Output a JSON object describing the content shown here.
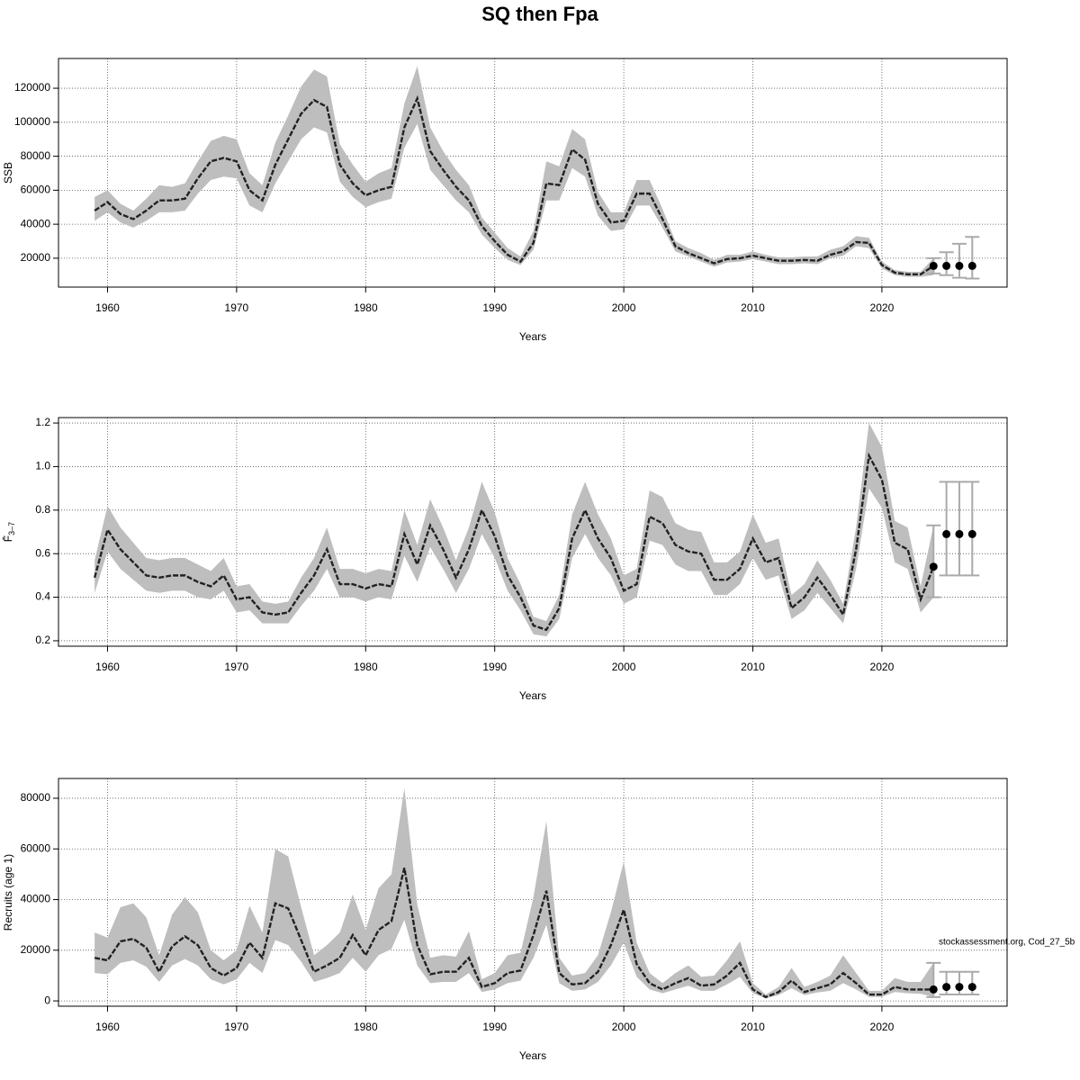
{
  "title": "SQ then Fpa",
  "chart_data": [
    {
      "type": "line",
      "xlabel": "Years",
      "ylabel": "SSB",
      "x": [
        1959,
        1960,
        1961,
        1962,
        1963,
        1964,
        1965,
        1966,
        1967,
        1968,
        1969,
        1970,
        1971,
        1972,
        1973,
        1974,
        1975,
        1976,
        1977,
        1978,
        1979,
        1980,
        1981,
        1982,
        1983,
        1984,
        1985,
        1986,
        1987,
        1988,
        1989,
        1990,
        1991,
        1992,
        1993,
        1994,
        1995,
        1996,
        1997,
        1998,
        1999,
        2000,
        2001,
        2002,
        2003,
        2004,
        2005,
        2006,
        2007,
        2008,
        2009,
        2010,
        2011,
        2012,
        2013,
        2014,
        2015,
        2016,
        2017,
        2018,
        2019,
        2020,
        2021,
        2022,
        2023,
        2024
      ],
      "values": [
        48000,
        53000,
        46000,
        43000,
        48000,
        54000,
        54000,
        55000,
        67000,
        77000,
        79000,
        77000,
        60000,
        54000,
        75000,
        90000,
        105000,
        113000,
        109000,
        75000,
        64000,
        57000,
        60000,
        62000,
        97000,
        114000,
        83000,
        72000,
        62000,
        54000,
        39000,
        30000,
        22000,
        18000,
        29000,
        64000,
        63000,
        84000,
        78000,
        52000,
        41000,
        42000,
        58000,
        58000,
        43000,
        27000,
        23000,
        20000,
        17000,
        19500,
        20000,
        21500,
        20000,
        18500,
        18500,
        19000,
        18500,
        22000,
        24000,
        29500,
        29000,
        16000,
        11500,
        10500,
        10500,
        15500
      ],
      "lower": [
        42000,
        47000,
        41000,
        38000,
        42000,
        47000,
        47000,
        48000,
        58000,
        66000,
        68000,
        67000,
        51000,
        47000,
        64000,
        77000,
        90000,
        97000,
        94000,
        65000,
        56000,
        50000,
        53000,
        55000,
        85000,
        99000,
        72000,
        63000,
        54000,
        47000,
        34000,
        26000,
        19000,
        16000,
        25000,
        54000,
        54000,
        73000,
        68000,
        45000,
        36000,
        37000,
        51000,
        51000,
        38000,
        24000,
        21000,
        18000,
        15000,
        17500,
        18000,
        19500,
        18000,
        16500,
        16500,
        17000,
        16500,
        20000,
        21500,
        27000,
        26000,
        14000,
        10000,
        9000,
        9000,
        10000
      ],
      "upper": [
        56000,
        60000,
        52000,
        48000,
        55000,
        63000,
        62000,
        64000,
        77000,
        89000,
        92000,
        90000,
        70000,
        63000,
        88000,
        104000,
        121000,
        131000,
        127000,
        87000,
        75000,
        65000,
        70000,
        73000,
        111000,
        133000,
        97000,
        83000,
        72000,
        63000,
        44000,
        35000,
        26000,
        21000,
        36000,
        77000,
        74000,
        96000,
        90000,
        59000,
        47000,
        47000,
        66000,
        66000,
        49000,
        30000,
        26000,
        23000,
        19000,
        22000,
        22000,
        24000,
        22000,
        20500,
        20500,
        21000,
        21000,
        25000,
        27000,
        33000,
        32000,
        18000,
        13000,
        12000,
        12000,
        20000
      ],
      "forecast": {
        "x": [
          2024,
          2025,
          2026,
          2027
        ],
        "values": [
          15500,
          15500,
          15500,
          15500
        ],
        "lower": [
          11000,
          10000,
          8500,
          8000
        ],
        "upper": [
          20000,
          23500,
          28500,
          32500
        ]
      },
      "xlim": [
        1956.2,
        2029.7
      ],
      "xticks": [
        1960,
        1970,
        1980,
        1990,
        2000,
        2010,
        2020
      ],
      "ylim": [
        3000,
        137500
      ],
      "yticks": [
        20000,
        40000,
        60000,
        80000,
        100000,
        120000
      ],
      "grid": true,
      "color": "#222222",
      "band_color": "#bebebe",
      "errorbar_color": "#aaaaaa",
      "point_color": "#000000"
    },
    {
      "type": "line",
      "xlabel": "Years",
      "ylabel": "F̄",
      "ylabel_subscript": "3–7",
      "x": [
        1959,
        1960,
        1961,
        1962,
        1963,
        1964,
        1965,
        1966,
        1967,
        1968,
        1969,
        1970,
        1971,
        1972,
        1973,
        1974,
        1975,
        1976,
        1977,
        1978,
        1979,
        1980,
        1981,
        1982,
        1983,
        1984,
        1985,
        1986,
        1987,
        1988,
        1989,
        1990,
        1991,
        1992,
        1993,
        1994,
        1995,
        1996,
        1997,
        1998,
        1999,
        2000,
        2001,
        2002,
        2003,
        2004,
        2005,
        2006,
        2007,
        2008,
        2009,
        2010,
        2011,
        2012,
        2013,
        2014,
        2015,
        2016,
        2017,
        2018,
        2019,
        2020,
        2021,
        2022,
        2023,
        2024
      ],
      "values": [
        0.49,
        0.71,
        0.62,
        0.56,
        0.5,
        0.49,
        0.5,
        0.5,
        0.47,
        0.45,
        0.5,
        0.39,
        0.4,
        0.33,
        0.32,
        0.33,
        0.42,
        0.5,
        0.62,
        0.46,
        0.46,
        0.44,
        0.46,
        0.45,
        0.69,
        0.55,
        0.73,
        0.62,
        0.49,
        0.62,
        0.8,
        0.68,
        0.5,
        0.4,
        0.27,
        0.25,
        0.35,
        0.67,
        0.8,
        0.67,
        0.58,
        0.43,
        0.46,
        0.77,
        0.74,
        0.64,
        0.61,
        0.6,
        0.48,
        0.48,
        0.53,
        0.67,
        0.56,
        0.58,
        0.35,
        0.4,
        0.49,
        0.41,
        0.32,
        0.62,
        1.05,
        0.94,
        0.65,
        0.62,
        0.39,
        0.54
      ],
      "lower": [
        0.42,
        0.61,
        0.53,
        0.48,
        0.43,
        0.42,
        0.43,
        0.43,
        0.4,
        0.39,
        0.43,
        0.33,
        0.34,
        0.28,
        0.28,
        0.28,
        0.36,
        0.43,
        0.53,
        0.4,
        0.4,
        0.38,
        0.4,
        0.39,
        0.59,
        0.47,
        0.63,
        0.53,
        0.42,
        0.53,
        0.69,
        0.58,
        0.43,
        0.34,
        0.23,
        0.22,
        0.3,
        0.58,
        0.69,
        0.58,
        0.5,
        0.37,
        0.4,
        0.66,
        0.64,
        0.55,
        0.52,
        0.52,
        0.41,
        0.41,
        0.46,
        0.58,
        0.48,
        0.5,
        0.3,
        0.34,
        0.42,
        0.35,
        0.28,
        0.53,
        0.9,
        0.81,
        0.56,
        0.53,
        0.33,
        0.4
      ],
      "upper": [
        0.57,
        0.82,
        0.72,
        0.65,
        0.58,
        0.57,
        0.58,
        0.58,
        0.55,
        0.52,
        0.58,
        0.45,
        0.46,
        0.38,
        0.37,
        0.38,
        0.49,
        0.58,
        0.72,
        0.53,
        0.53,
        0.51,
        0.53,
        0.52,
        0.8,
        0.64,
        0.85,
        0.72,
        0.57,
        0.72,
        0.93,
        0.79,
        0.58,
        0.46,
        0.31,
        0.29,
        0.41,
        0.78,
        0.93,
        0.78,
        0.67,
        0.5,
        0.53,
        0.89,
        0.86,
        0.74,
        0.71,
        0.7,
        0.56,
        0.56,
        0.61,
        0.78,
        0.65,
        0.67,
        0.41,
        0.46,
        0.57,
        0.48,
        0.37,
        0.72,
        1.2,
        1.09,
        0.75,
        0.72,
        0.45,
        0.73
      ],
      "forecast": {
        "x": [
          2024,
          2025,
          2026,
          2027
        ],
        "values": [
          0.54,
          0.69,
          0.69,
          0.69
        ],
        "lower": [
          0.4,
          0.5,
          0.5,
          0.5
        ],
        "upper": [
          0.73,
          0.93,
          0.93,
          0.93
        ]
      },
      "xlim": [
        1956.2,
        2029.7
      ],
      "xticks": [
        1960,
        1970,
        1980,
        1990,
        2000,
        2010,
        2020
      ],
      "ylim": [
        0.175,
        1.225
      ],
      "yticks": [
        0.2,
        0.4,
        0.6,
        0.8,
        {
          "value": 1,
          "label": "1.0"
        },
        1.2
      ],
      "grid": true,
      "color": "#222222",
      "band_color": "#bebebe",
      "errorbar_color": "#aaaaaa",
      "point_color": "#000000"
    },
    {
      "type": "line",
      "xlabel": "Years",
      "ylabel": "Recruits (age 1)",
      "annotation": "stockassessment.org, Cod_27_5b",
      "x": [
        1959,
        1960,
        1961,
        1962,
        1963,
        1964,
        1965,
        1966,
        1967,
        1968,
        1969,
        1970,
        1971,
        1972,
        1973,
        1974,
        1975,
        1976,
        1977,
        1978,
        1979,
        1980,
        1981,
        1982,
        1983,
        1984,
        1985,
        1986,
        1987,
        1988,
        1989,
        1990,
        1991,
        1992,
        1993,
        1994,
        1995,
        1996,
        1997,
        1998,
        1999,
        2000,
        2001,
        2002,
        2003,
        2004,
        2005,
        2006,
        2007,
        2008,
        2009,
        2010,
        2011,
        2012,
        2013,
        2014,
        2015,
        2016,
        2017,
        2018,
        2019,
        2020,
        2021,
        2022,
        2023,
        2024
      ],
      "values": [
        17000,
        16000,
        23500,
        24500,
        21000,
        11500,
        21500,
        25500,
        22000,
        13000,
        10000,
        13000,
        23000,
        17000,
        38500,
        36500,
        24000,
        11500,
        14000,
        17000,
        26000,
        18000,
        28000,
        31500,
        52500,
        22000,
        10500,
        11500,
        11500,
        17000,
        5500,
        7000,
        11000,
        12000,
        26000,
        43500,
        11000,
        6500,
        7000,
        11500,
        22000,
        36000,
        14500,
        7000,
        4500,
        7000,
        9000,
        6000,
        6500,
        10000,
        15000,
        4500,
        1500,
        3500,
        8000,
        3500,
        5000,
        6500,
        11000,
        7000,
        2500,
        2500,
        5500,
        4500,
        4500,
        4500
      ],
      "lower": [
        11000,
        10500,
        15000,
        16000,
        13500,
        7500,
        14000,
        16500,
        14000,
        8500,
        6500,
        8500,
        15000,
        11000,
        24000,
        22000,
        15500,
        7500,
        9000,
        11000,
        17000,
        11500,
        18000,
        20500,
        32000,
        14000,
        7000,
        7500,
        7500,
        11000,
        3500,
        4500,
        7000,
        8000,
        17000,
        30000,
        7000,
        4000,
        4500,
        7500,
        14000,
        23000,
        9500,
        4500,
        3000,
        4500,
        6000,
        4000,
        4000,
        6500,
        9500,
        3000,
        1000,
        2300,
        5000,
        2300,
        3300,
        4000,
        7000,
        4500,
        1600,
        1600,
        3500,
        3000,
        2800,
        1500
      ],
      "upper": [
        27000,
        25000,
        37000,
        38500,
        33000,
        18000,
        34000,
        41000,
        35000,
        20000,
        16000,
        20000,
        37500,
        27000,
        60000,
        57000,
        37000,
        18000,
        22000,
        27000,
        42000,
        28000,
        44500,
        50000,
        84000,
        38000,
        17000,
        18000,
        17500,
        27500,
        8500,
        11000,
        18000,
        19000,
        41000,
        71000,
        17000,
        10000,
        11000,
        18000,
        35000,
        55000,
        23000,
        11000,
        7000,
        11000,
        14000,
        9500,
        10000,
        16000,
        23500,
        7000,
        2500,
        5500,
        13000,
        5500,
        7500,
        10000,
        18000,
        11000,
        4000,
        4000,
        9000,
        7500,
        7500,
        15000
      ],
      "forecast": {
        "x": [
          2024,
          2025,
          2026,
          2027
        ],
        "values": [
          4500,
          5500,
          5500,
          5500
        ],
        "lower": [
          1500,
          2500,
          2500,
          2500
        ],
        "upper": [
          15000,
          11500,
          11500,
          11500
        ]
      },
      "xlim": [
        1956.2,
        2029.7
      ],
      "xticks": [
        1960,
        1970,
        1980,
        1990,
        2000,
        2010,
        2020
      ],
      "ylim": [
        -2100,
        87800
      ],
      "yticks": [
        0,
        20000,
        40000,
        60000,
        80000
      ],
      "grid": true,
      "color": "#222222",
      "band_color": "#bebebe",
      "errorbar_color": "#aaaaaa",
      "point_color": "#000000"
    }
  ]
}
